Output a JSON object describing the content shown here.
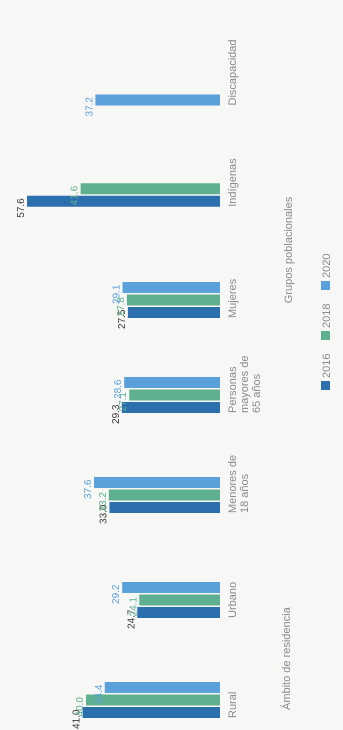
{
  "chart_data": {
    "type": "bar",
    "orientation": "horizontal",
    "rotated": true,
    "title": "",
    "xlabel": "Grupos poblacionales",
    "ylabel": "",
    "ylim": [
      0,
      60
    ],
    "grid": false,
    "legend_position": "bottom",
    "group_labels": [
      "Ámbito de residencia"
    ],
    "categories": [
      "Rural",
      "Urbano",
      "Menores de 18 años",
      "Personas mayores de 65 años",
      "Mujeres",
      "Indígenas",
      "Discapacidad"
    ],
    "series": [
      {
        "name": "2016",
        "color": "#2c6fae",
        "values": [
          41.0,
          24.7,
          33.0,
          29.3,
          27.5,
          57.6,
          null
        ]
      },
      {
        "name": "2018",
        "color": "#5fb090",
        "values": [
          40.0,
          24.1,
          33.2,
          27.1,
          27.8,
          41.6,
          null
        ]
      },
      {
        "name": "2020",
        "color": "#5aa1dc",
        "values": [
          34.4,
          29.2,
          37.6,
          28.6,
          29.1,
          null,
          37.2
        ]
      }
    ],
    "value_labels": [
      [
        "41.0",
        "24.7",
        "33.0",
        "29.3",
        "27.5",
        "57.6",
        ""
      ],
      [
        "40.0",
        "24.1",
        "33.2",
        "27.1",
        "27.8",
        "41.6",
        ""
      ],
      [
        "34.4",
        "29.2",
        "37.6",
        "28.6",
        "29.1",
        "",
        "37.2"
      ]
    ]
  }
}
